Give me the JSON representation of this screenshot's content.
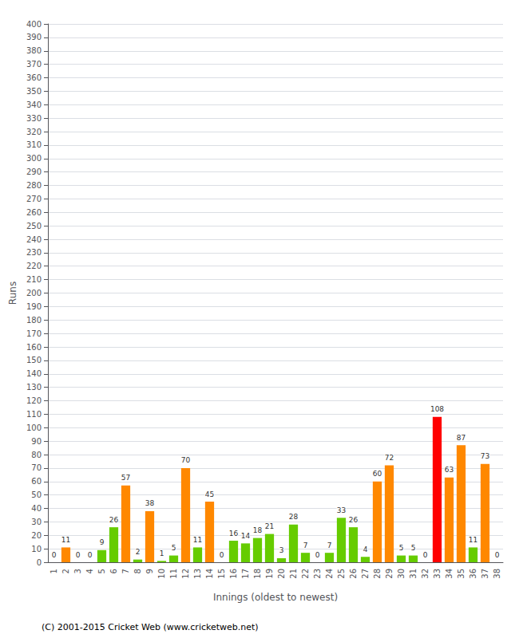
{
  "chart_data": {
    "type": "bar",
    "categories": [
      "1",
      "2",
      "3",
      "4",
      "5",
      "6",
      "7",
      "8",
      "9",
      "10",
      "11",
      "12",
      "13",
      "14",
      "15",
      "16",
      "17",
      "18",
      "19",
      "20",
      "21",
      "22",
      "23",
      "24",
      "25",
      "26",
      "27",
      "28",
      "29",
      "30",
      "31",
      "32",
      "33",
      "34",
      "35",
      "36",
      "37",
      "38"
    ],
    "values": [
      0,
      11,
      0,
      0,
      9,
      26,
      57,
      2,
      38,
      1,
      5,
      70,
      11,
      45,
      0,
      16,
      14,
      18,
      21,
      3,
      28,
      7,
      0,
      7,
      33,
      26,
      4,
      60,
      72,
      5,
      5,
      0,
      108,
      63,
      87,
      11,
      73,
      0
    ],
    "colors": [
      "#66cc00",
      "#ff8800",
      "#66cc00",
      "#66cc00",
      "#66cc00",
      "#66cc00",
      "#ff8800",
      "#66cc00",
      "#ff8800",
      "#66cc00",
      "#66cc00",
      "#ff8800",
      "#66cc00",
      "#ff8800",
      "#66cc00",
      "#66cc00",
      "#66cc00",
      "#66cc00",
      "#66cc00",
      "#66cc00",
      "#66cc00",
      "#66cc00",
      "#66cc00",
      "#66cc00",
      "#66cc00",
      "#66cc00",
      "#66cc00",
      "#ff8800",
      "#ff8800",
      "#66cc00",
      "#66cc00",
      "#66cc00",
      "#ff0000",
      "#ff8800",
      "#ff8800",
      "#66cc00",
      "#ff8800",
      "#66cc00"
    ],
    "ylabel": "Runs",
    "xlabel": "Innings (oldest to newest)",
    "ylim": [
      0,
      400
    ],
    "yticks": [
      0,
      10,
      20,
      30,
      40,
      50,
      60,
      70,
      80,
      90,
      100,
      110,
      120,
      130,
      140,
      150,
      160,
      170,
      180,
      190,
      200,
      210,
      220,
      230,
      240,
      250,
      260,
      270,
      280,
      290,
      300,
      310,
      320,
      330,
      340,
      350,
      360,
      370,
      380,
      390,
      400
    ],
    "grid": true,
    "data_labels": true,
    "annotations": [
      "(C) 2001-2015 Cricket Web (www.cricketweb.net)"
    ]
  }
}
